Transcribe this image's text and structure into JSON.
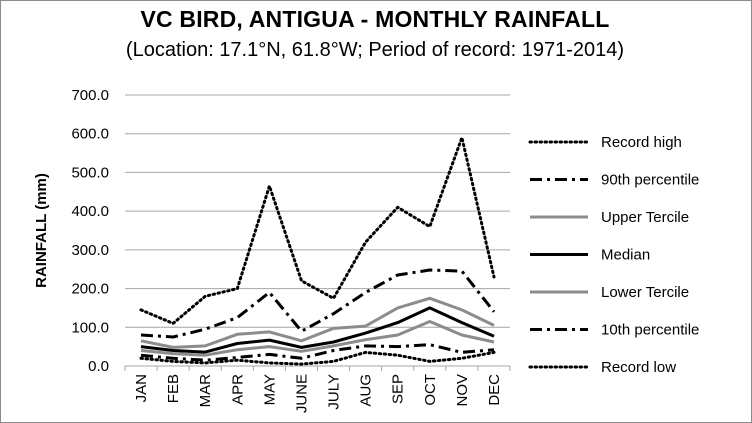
{
  "chart_data": {
    "type": "line",
    "title": "VC BIRD, ANTIGUA - MONTHLY RAINFALL",
    "subtitle": "(Location: 17.1°N, 61.8°W; Period of record: 1971-2014)",
    "ylabel": "RAINFALL (mm)",
    "xlabel": "",
    "ylim": [
      0,
      700
    ],
    "yticks": [
      "0.0",
      "100.0",
      "200.0",
      "300.0",
      "400.0",
      "500.0",
      "600.0",
      "700.0"
    ],
    "grid": true,
    "legend_position": "right",
    "categories": [
      "JAN",
      "FEB",
      "MAR",
      "APR",
      "MAY",
      "JUNE",
      "JULY",
      "AUG",
      "SEP",
      "OCT",
      "NOV",
      "DEC"
    ],
    "series": [
      {
        "name": "Record high",
        "style": "dotted",
        "color": "#000000",
        "values": [
          145,
          110,
          180,
          200,
          465,
          220,
          175,
          320,
          410,
          360,
          590,
          230
        ]
      },
      {
        "name": "90th percentile",
        "style": "dashdot",
        "color": "#000000",
        "values": [
          80,
          75,
          95,
          125,
          190,
          90,
          135,
          190,
          235,
          248,
          245,
          140
        ]
      },
      {
        "name": "Upper Tercile",
        "style": "solid",
        "color": "#8c8c8c",
        "values": [
          65,
          48,
          52,
          82,
          88,
          65,
          97,
          103,
          150,
          175,
          145,
          105
        ]
      },
      {
        "name": "Median",
        "style": "solid",
        "color": "#000000",
        "values": [
          50,
          40,
          36,
          58,
          67,
          48,
          62,
          85,
          112,
          150,
          112,
          77
        ]
      },
      {
        "name": "Lower Tercile",
        "style": "solid",
        "color": "#8c8c8c",
        "values": [
          40,
          32,
          28,
          42,
          50,
          38,
          52,
          68,
          80,
          115,
          80,
          62
        ]
      },
      {
        "name": "10th percentile",
        "style": "dashdot",
        "color": "#000000",
        "values": [
          28,
          20,
          15,
          22,
          30,
          20,
          40,
          52,
          50,
          55,
          35,
          42
        ]
      },
      {
        "name": "Record low",
        "style": "dotted",
        "color": "#000000",
        "values": [
          20,
          12,
          8,
          15,
          8,
          5,
          12,
          35,
          28,
          12,
          20,
          35
        ]
      }
    ]
  }
}
